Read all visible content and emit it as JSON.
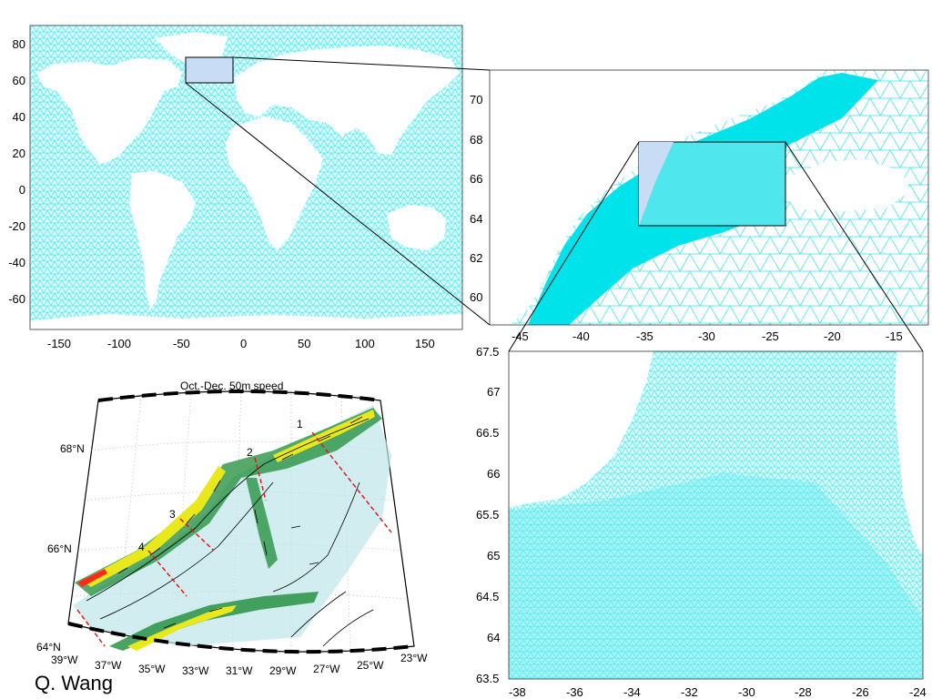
{
  "author": "Q. Wang",
  "world_map": {
    "y_ticks": [
      "80",
      "60",
      "40",
      "20",
      "0",
      "-20",
      "-40",
      "-60"
    ],
    "x_ticks": [
      "-150",
      "-100",
      "-50",
      "0",
      "50",
      "100",
      "150"
    ]
  },
  "zoom1": {
    "y_ticks": [
      "70",
      "68",
      "66",
      "64",
      "62",
      "60"
    ],
    "x_ticks": [
      "-45",
      "-40",
      "-35",
      "-30",
      "-25",
      "-20",
      "-15"
    ]
  },
  "zoom2": {
    "y_ticks": [
      "67.5",
      "67",
      "66.5",
      "66",
      "65.5",
      "65",
      "64.5",
      "64",
      "63.5"
    ],
    "x_ticks": [
      "-38",
      "-36",
      "-34",
      "-32",
      "-30",
      "-28",
      "-26",
      "-24"
    ]
  },
  "inset": {
    "title": "Oct.-Dec. 50m speed",
    "lat_labels": [
      "68°N",
      "66°N",
      "64°N"
    ],
    "lon_labels": [
      "39°W",
      "37°W",
      "35°W",
      "33°W",
      "31°W",
      "29°W",
      "27°W",
      "25°W",
      "23°W"
    ],
    "section_labels": [
      "1",
      "2",
      "3",
      "4"
    ]
  },
  "colors": {
    "mesh": "#33e6ee",
    "ocean_fill": "#00e5ec",
    "box_fill": "#c9dcf5",
    "land": "#ffffff",
    "speed_high": "#ff2a1a",
    "speed_mid": "#e8e81a",
    "speed_low": "#1e8c3a"
  }
}
